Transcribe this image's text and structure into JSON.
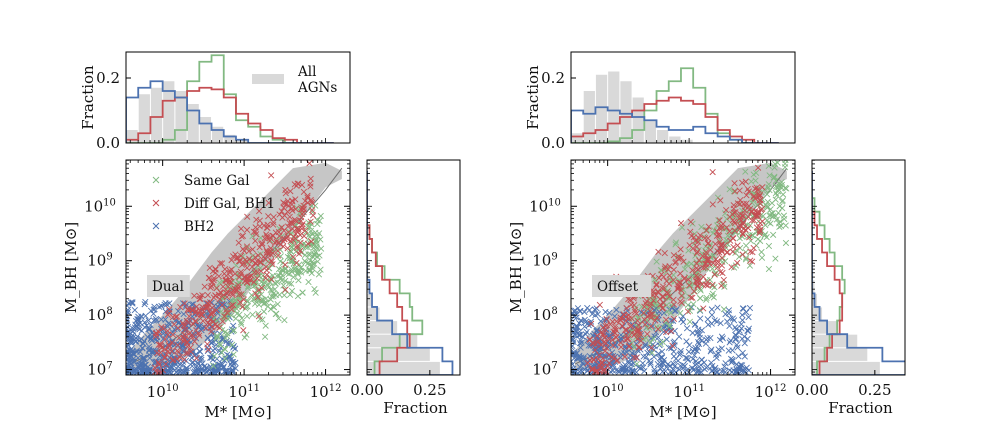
{
  "chart_data": {
    "type": "scatter",
    "title": "",
    "series_names": {
      "same": "Same Gal",
      "diff": "Diff Gal, BH1",
      "bh2": "BH2",
      "all": "All AGNs"
    },
    "colors": {
      "same": "#82b982",
      "diff": "#c44e52",
      "bh2": "#4c72b0",
      "band": "#b3b3b3",
      "allHist": "#d9d9d9",
      "median": "#6e6e6e"
    },
    "legend_labels": [
      "Same Gal",
      "Diff Gal, BH1",
      "BH2"
    ],
    "hist_legend_label": [
      "All",
      "AGNs"
    ],
    "axes": {
      "xlabel": "M* [M⊙]",
      "ylabel": "M_BH [M⊙]",
      "xlim_log10": [
        9.55,
        12.3
      ],
      "ylim_log10": [
        6.9,
        10.85
      ],
      "x_ticks_log10": [
        10,
        11,
        12
      ],
      "y_ticks_log10": [
        7,
        8,
        9,
        10
      ],
      "x_tick_labels": [
        "10^10",
        "10^11",
        "10^12"
      ],
      "y_tick_labels": [
        "10^7",
        "10^8",
        "10^9",
        "10^10"
      ],
      "top_ylabel": "Fraction",
      "top_ylim": [
        0,
        0.28
      ],
      "top_ticks": [
        "0.0",
        "0.2"
      ],
      "side_xlabel": "Fraction",
      "side_xlim": [
        0,
        0.37
      ],
      "side_ticks": [
        "0.00",
        "0.25"
      ]
    },
    "band": {
      "x": [
        9.6,
        9.8,
        10.0,
        10.2,
        10.4,
        10.6,
        10.8,
        11.0,
        11.2,
        11.4,
        11.6,
        11.8,
        12.0,
        12.2
      ],
      "lo": [
        7.0,
        7.0,
        7.05,
        7.15,
        7.35,
        7.6,
        7.9,
        8.3,
        8.75,
        9.15,
        9.55,
        9.95,
        10.35,
        10.5
      ],
      "hi": [
        7.35,
        7.7,
        8.0,
        8.35,
        8.75,
        9.15,
        9.5,
        9.8,
        10.1,
        10.4,
        10.7,
        10.75,
        10.8,
        10.65
      ],
      "median_x": [
        9.6,
        10.0,
        10.4,
        10.8,
        11.2,
        11.6,
        12.0,
        12.2
      ],
      "median_y": [
        7.1,
        7.4,
        7.85,
        8.4,
        8.95,
        9.6,
        10.3,
        10.7
      ]
    },
    "hist_x_edges_log10": [
      9.55,
      9.7,
      9.85,
      10.0,
      10.15,
      10.3,
      10.45,
      10.6,
      10.75,
      10.9,
      11.05,
      11.2,
      11.35,
      11.5,
      11.65,
      11.8,
      11.95,
      12.1
    ],
    "hist_y_edges_log10": [
      6.9,
      7.15,
      7.4,
      7.65,
      7.9,
      8.15,
      8.4,
      8.65,
      8.9,
      9.15,
      9.4,
      9.65,
      9.9,
      10.15,
      10.4,
      10.65
    ],
    "panels": [
      {
        "tag": "Dual",
        "show_legend": true,
        "top_hist": {
          "all": [
            0.04,
            0.15,
            0.17,
            0.19,
            0.16,
            0.12,
            0.08,
            0.05,
            0.025,
            0.01,
            0,
            0,
            0,
            0,
            0,
            0,
            0
          ],
          "same": [
            0,
            0,
            0,
            0.01,
            0.04,
            0.19,
            0.25,
            0.27,
            0.15,
            0.07,
            0.05,
            0.02,
            0.01,
            0,
            0,
            0,
            0
          ],
          "diff": [
            0.01,
            0.03,
            0.08,
            0.13,
            0.14,
            0.16,
            0.17,
            0.165,
            0.14,
            0.09,
            0.06,
            0.04,
            0.015,
            0.01,
            0,
            0,
            0
          ],
          "bh2": [
            0.14,
            0.17,
            0.19,
            0.16,
            0.14,
            0.1,
            0.06,
            0.04,
            0.02,
            0.01,
            0,
            0,
            0,
            0,
            0,
            0,
            0
          ]
        },
        "side_hist": {
          "all": [
            0.29,
            0.25,
            0.2,
            0.12,
            0.05,
            0.02,
            0.01,
            0.005,
            0,
            0,
            0,
            0,
            0,
            0,
            0
          ],
          "same": [
            0.03,
            0.06,
            0.13,
            0.22,
            0.18,
            0.17,
            0.13,
            0.07,
            0.04,
            0.02,
            0.01,
            0,
            0,
            0,
            0
          ],
          "diff": [
            0.05,
            0.12,
            0.17,
            0.16,
            0.14,
            0.12,
            0.09,
            0.06,
            0.035,
            0.02,
            0.01,
            0,
            0,
            0,
            0
          ],
          "bh2": [
            0.34,
            0.3,
            0.16,
            0.1,
            0.04,
            0.02,
            0.01,
            0,
            0,
            0,
            0,
            0,
            0,
            0,
            0
          ]
        },
        "bh2_cloud": {
          "x_range": [
            9.55,
            10.9
          ],
          "y_range": [
            6.95,
            8.25
          ]
        },
        "diff_cloud": {
          "slope": 1.45,
          "intercept_at_x10": 7.4,
          "x_range": [
            9.9,
            11.85
          ]
        },
        "same_cloud": {
          "slope": 1.25,
          "intercept_at_x10": 7.0,
          "x_range": [
            10.6,
            11.95
          ]
        }
      },
      {
        "tag": "Offset",
        "show_legend": false,
        "top_hist": {
          "all": [
            0.03,
            0.16,
            0.21,
            0.22,
            0.19,
            0.14,
            0.07,
            0.04,
            0.02,
            0.01,
            0,
            0,
            0,
            0,
            0,
            0,
            0
          ],
          "same": [
            0,
            0,
            0,
            0.005,
            0.015,
            0.04,
            0.1,
            0.16,
            0.19,
            0.23,
            0.17,
            0.09,
            0.03,
            0.01,
            0,
            0,
            0
          ],
          "diff": [
            0.02,
            0.03,
            0.04,
            0.06,
            0.08,
            0.1,
            0.12,
            0.13,
            0.14,
            0.13,
            0.12,
            0.08,
            0.04,
            0.02,
            0.01,
            0,
            0
          ],
          "bh2": [
            0.1,
            0.09,
            0.11,
            0.1,
            0.09,
            0.08,
            0.07,
            0.05,
            0.04,
            0.04,
            0.05,
            0.03,
            0.02,
            0.01,
            0,
            0,
            0
          ]
        },
        "side_hist": {
          "all": [
            0.27,
            0.22,
            0.18,
            0.1,
            0.04,
            0.02,
            0.01,
            0.005,
            0,
            0,
            0,
            0,
            0,
            0,
            0
          ],
          "same": [
            0.02,
            0.05,
            0.07,
            0.1,
            0.11,
            0.12,
            0.13,
            0.12,
            0.09,
            0.07,
            0.05,
            0.03,
            0.01,
            0,
            0
          ],
          "diff": [
            0.03,
            0.06,
            0.08,
            0.11,
            0.12,
            0.12,
            0.11,
            0.09,
            0.06,
            0.04,
            0.02,
            0.01,
            0,
            0,
            0
          ],
          "bh2": [
            0.41,
            0.28,
            0.14,
            0.06,
            0.03,
            0.01,
            0,
            0,
            0,
            0,
            0,
            0,
            0,
            0,
            0
          ]
        },
        "bh2_cloud": {
          "x_range": [
            9.55,
            11.75
          ],
          "y_range": [
            6.95,
            8.15
          ]
        },
        "diff_cloud": {
          "slope": 1.35,
          "intercept_at_x10": 7.45,
          "x_range": [
            9.75,
            11.9
          ]
        },
        "same_cloud": {
          "slope": 1.35,
          "intercept_at_x10": 7.35,
          "x_range": [
            10.25,
            12.2
          ]
        }
      }
    ]
  }
}
